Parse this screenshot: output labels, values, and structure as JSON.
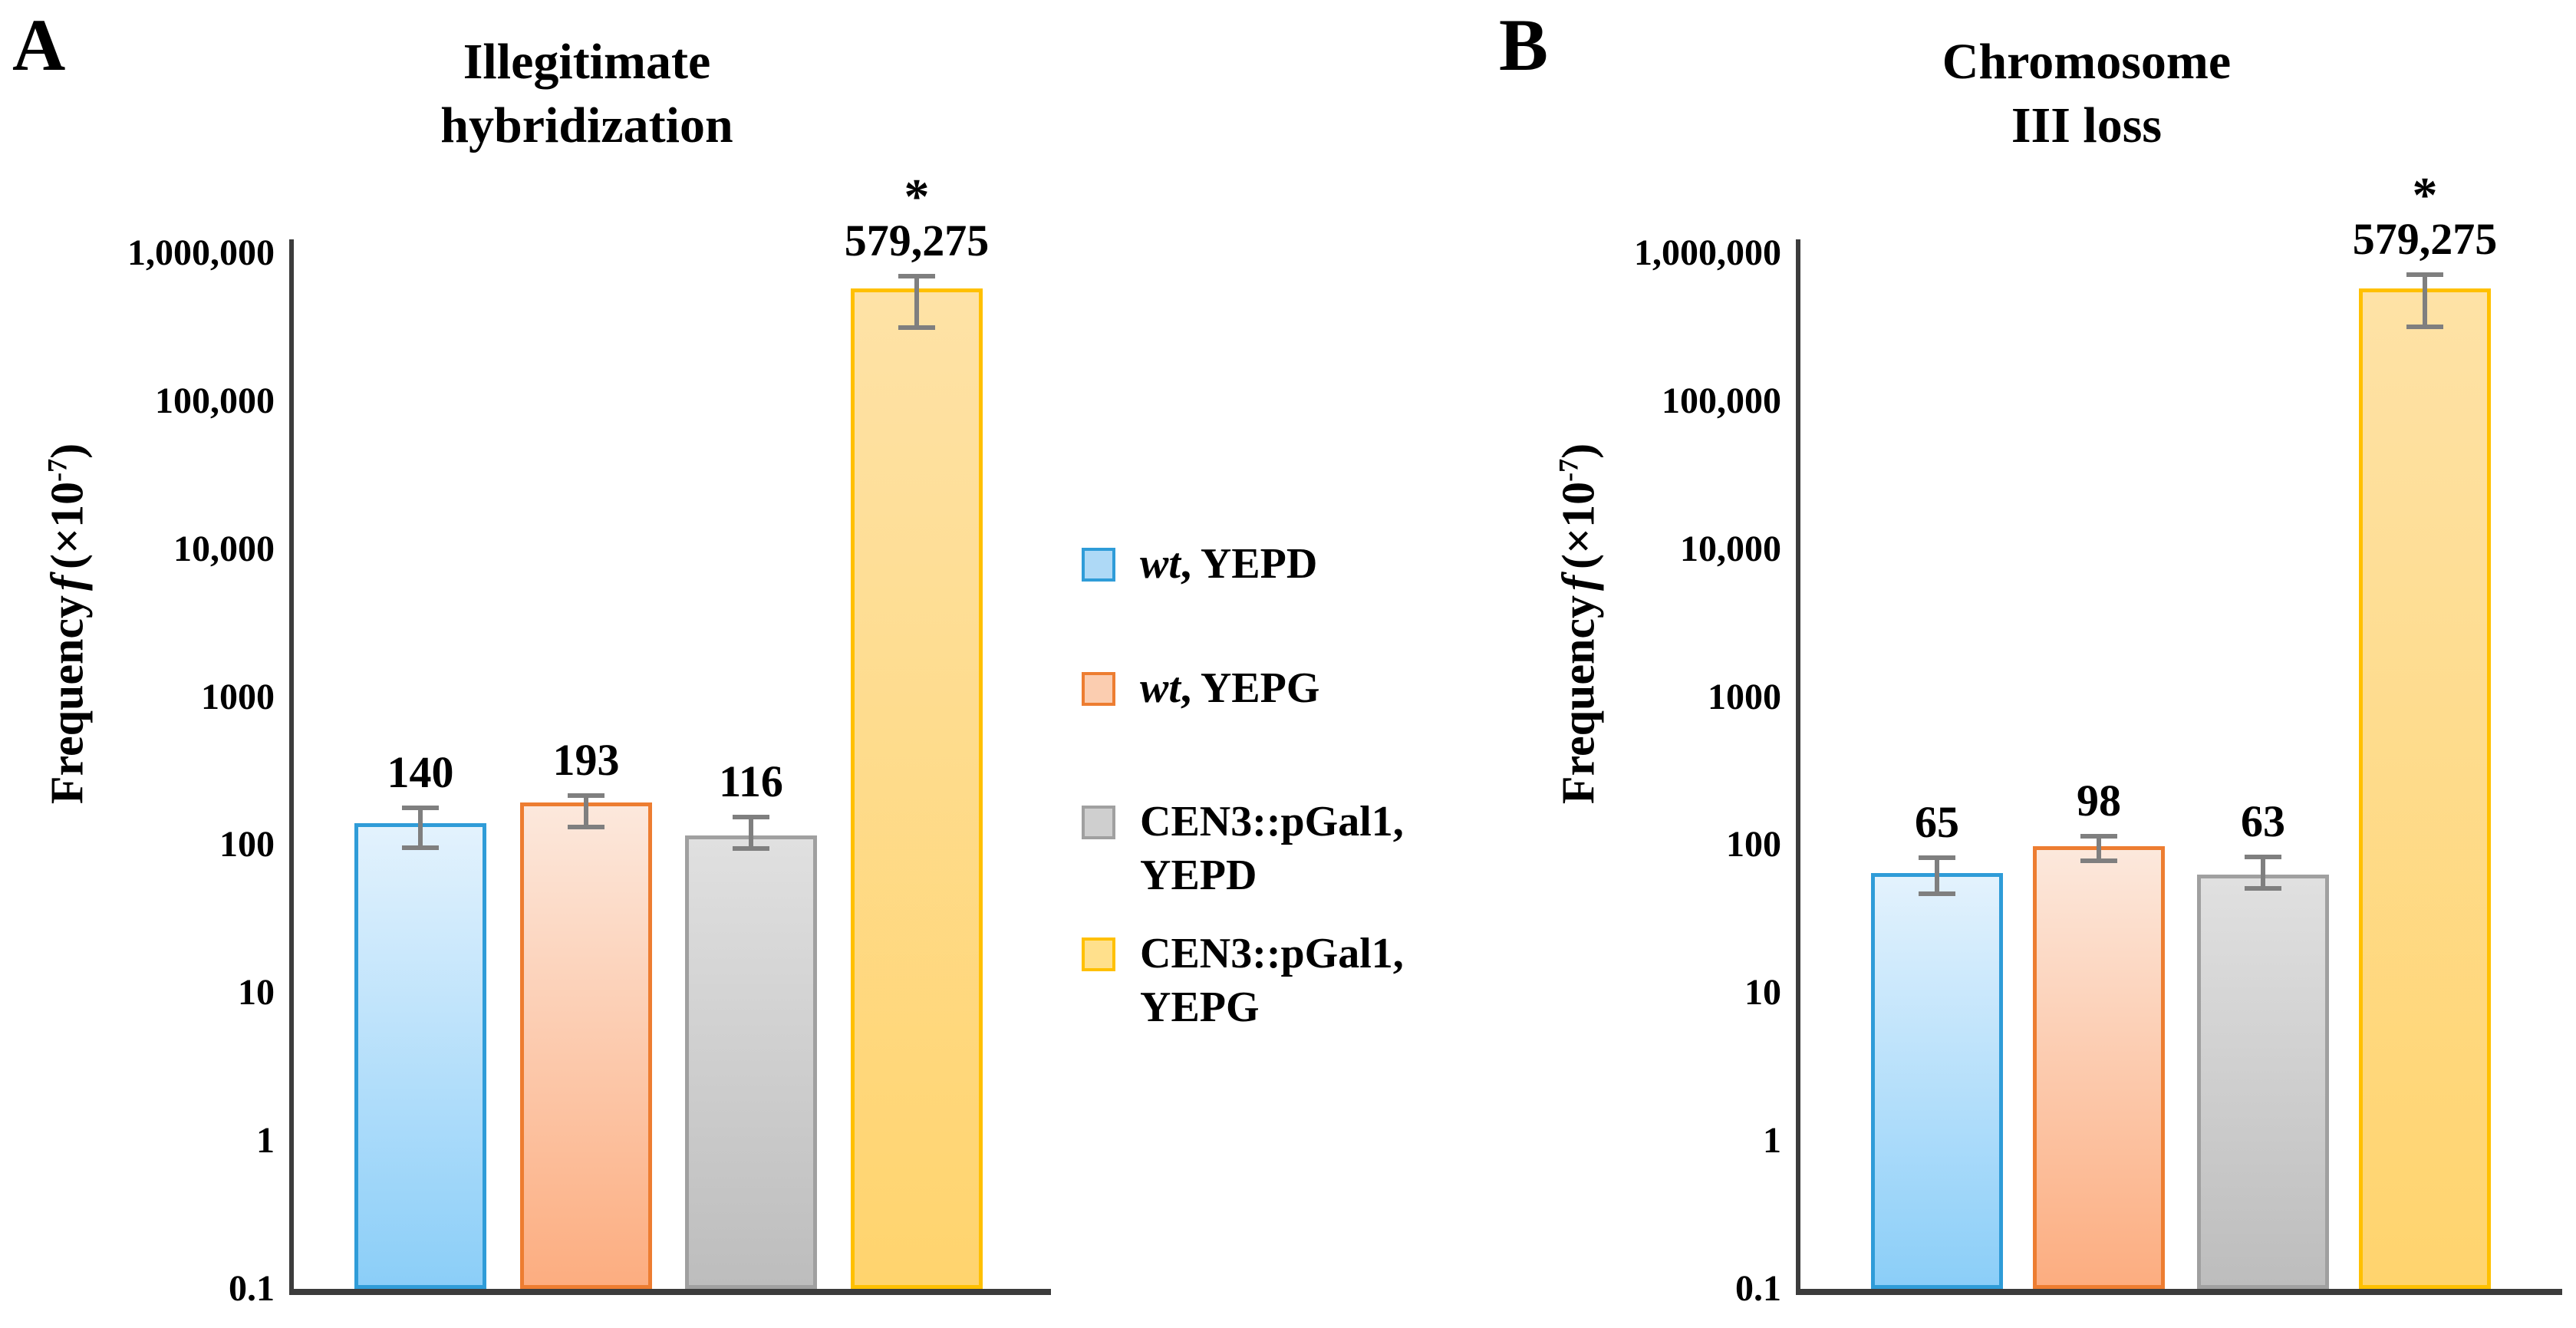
{
  "chart_data": [
    {
      "type": "bar",
      "panel_letter": "A",
      "title": "Illegitimate\nhybridization",
      "xlabel": "",
      "ylabel": "Frequency f (×10-7)",
      "yscale": "log",
      "ylim": [
        0.1,
        1000000
      ],
      "grid": false,
      "ytick_values": [
        1000000,
        100000,
        10000,
        1000,
        100,
        10,
        1,
        0.1
      ],
      "ytick_labels": [
        "1,000,000",
        "100,000",
        "10,000",
        "1000",
        "100",
        "10",
        "1",
        "0.1"
      ],
      "categories": [
        "wt, YEPD",
        "wt, YEPG",
        "CEN3::pGal1, YEPD",
        "CEN3::pGal1, YEPG"
      ],
      "values": [
        140,
        193,
        116,
        579275
      ],
      "value_labels": [
        "140",
        "193",
        "116",
        "579,275"
      ],
      "error_lo": [
        96,
        132,
        95,
        314000
      ],
      "error_hi": [
        178,
        216,
        155,
        700000
      ],
      "annotations": [
        "",
        "",
        "",
        "*"
      ]
    },
    {
      "type": "bar",
      "panel_letter": "B",
      "title": "Chromosome\nIII loss",
      "xlabel": "",
      "ylabel": "Frequency f (×10-7)",
      "yscale": "log",
      "ylim": [
        0.1,
        1000000
      ],
      "grid": false,
      "ytick_values": [
        1000000,
        100000,
        10000,
        1000,
        100,
        10,
        1,
        0.1
      ],
      "ytick_labels": [
        "1,000,000",
        "100,000",
        "10,000",
        "1000",
        "100",
        "10",
        "1",
        "0.1"
      ],
      "categories": [
        "wt, YEPD",
        "wt, YEPG",
        "CEN3::pGal1, YEPD",
        "CEN3::pGal1, YEPG"
      ],
      "values": [
        65,
        98,
        63,
        579275
      ],
      "value_labels": [
        "65",
        "98",
        "63",
        "579,275"
      ],
      "error_lo": [
        47,
        78,
        51,
        318000
      ],
      "error_hi": [
        82,
        115,
        83,
        716000
      ],
      "annotations": [
        "",
        "",
        "",
        "*"
      ]
    }
  ],
  "ylabel_parts": {
    "pre": "Frequency",
    "f": "f",
    "mid": "(×10",
    "sup": "-7",
    "post": ")"
  },
  "legend": {
    "position": "between-panels",
    "items": [
      {
        "italic": "wt",
        "text": ", YEPD"
      },
      {
        "italic": "wt",
        "text": ", YEPG"
      },
      {
        "italic": "",
        "text": "CEN3::pGal1,\nYEPD"
      },
      {
        "italic": "",
        "text": "CEN3::pGal1,\nYEPG"
      }
    ]
  },
  "series_styles": [
    {
      "key": "wt-yepd",
      "name": "wt, YEPD",
      "border": "#2f9cd8",
      "fill_top": "#e3f2fd",
      "fill_bottom": "#8bcef8",
      "legend_fill": "#aed9f6"
    },
    {
      "key": "wt-yepg",
      "name": "wt, YEPG",
      "border": "#ed7d31",
      "fill_top": "#fce8dc",
      "fill_bottom": "#fcad80",
      "legend_fill": "#fbcdb0"
    },
    {
      "key": "cen3-yepd",
      "name": "CEN3::pGal1, YEPD",
      "border": "#a0a0a0",
      "fill_top": "#e0e0e0",
      "fill_bottom": "#bdbdbd",
      "legend_fill": "#cfcfcf"
    },
    {
      "key": "cen3-yepg",
      "name": "CEN3::pGal1, YEPG",
      "border": "#ffc000",
      "fill_top": "#fee2a6",
      "fill_bottom": "#ffd46e",
      "legend_fill": "#ffe08c"
    }
  ],
  "colors": {
    "error_bar": "#7f7f7f",
    "axis": "#3c3c3c",
    "background": "#ffffff",
    "text": "#000000"
  }
}
